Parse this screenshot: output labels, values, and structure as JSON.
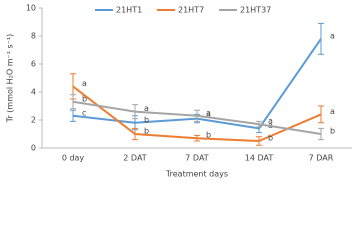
{
  "chart_data": {
    "type": "line",
    "y_label": "Tr (mmol H₂O m⁻² s⁻¹)",
    "x_label": "Treatment days",
    "categories": [
      "0 day",
      "2 DAT",
      "7 DAT",
      "14 DAT",
      "7 DAR"
    ],
    "series": [
      {
        "name": "21HT1",
        "color": "#5b9bd5",
        "values": [
          2.3,
          1.8,
          2.1,
          1.4,
          7.8
        ],
        "errors": [
          0.4,
          0.5,
          0.3,
          0.3,
          1.1
        ],
        "letters": [
          "c",
          "b",
          "a",
          "a",
          "a"
        ]
      },
      {
        "name": "21HT7",
        "color": "#ed7d31",
        "values": [
          4.4,
          1.0,
          0.7,
          0.5,
          2.4
        ],
        "errors": [
          0.9,
          0.4,
          0.2,
          0.3,
          0.6
        ],
        "letters": [
          "a",
          "b",
          "b",
          "b",
          "a"
        ]
      },
      {
        "name": "21HT37",
        "color": "#a5a5a5",
        "values": [
          3.3,
          2.6,
          2.3,
          1.7,
          1.0
        ],
        "errors": [
          0.5,
          0.5,
          0.4,
          0.2,
          0.4
        ],
        "letters": [
          "b",
          "a",
          "a",
          "a",
          "b"
        ]
      }
    ],
    "ylim": [
      0,
      10
    ],
    "yticks": [
      0,
      2,
      4,
      6,
      8,
      10
    ],
    "legend": "top"
  }
}
